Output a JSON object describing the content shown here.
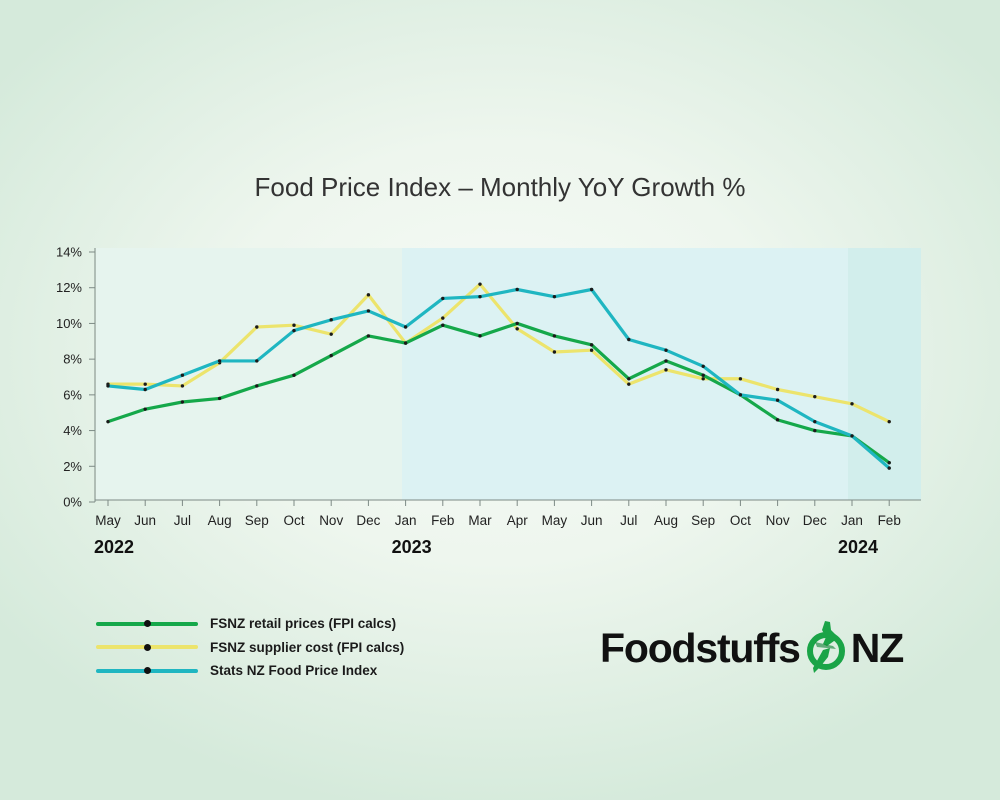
{
  "chart_data": {
    "type": "line",
    "title": "Food Price Index – Monthly YoY Growth %",
    "categories": [
      "May",
      "Jun",
      "Jul",
      "Aug",
      "Sep",
      "Oct",
      "Nov",
      "Dec",
      "Jan",
      "Feb",
      "Mar",
      "Apr",
      "May",
      "Jun",
      "Jul",
      "Aug",
      "Sep",
      "Oct",
      "Nov",
      "Dec",
      "Jan",
      "Feb"
    ],
    "year_labels": [
      {
        "label": "2022",
        "category_index": 0
      },
      {
        "label": "2023",
        "category_index": 8
      },
      {
        "label": "2024",
        "category_index": 20
      }
    ],
    "yticks": [
      "0%",
      "2%",
      "4%",
      "6%",
      "8%",
      "10%",
      "12%",
      "14%"
    ],
    "ylim": [
      0,
      14
    ],
    "xlabel": "",
    "ylabel": "",
    "series": [
      {
        "name": "FSNZ retail prices (FPI calcs)",
        "color": "#15a84a",
        "values": [
          4.5,
          5.2,
          5.6,
          5.8,
          6.5,
          7.1,
          8.2,
          9.3,
          8.9,
          9.9,
          9.3,
          10.0,
          9.3,
          8.8,
          6.9,
          7.9,
          7.1,
          6.0,
          4.6,
          4.0,
          3.7,
          2.2
        ]
      },
      {
        "name": "FSNZ supplier cost (FPI calcs)",
        "color": "#ece46c",
        "values": [
          6.6,
          6.6,
          6.5,
          7.8,
          9.8,
          9.9,
          9.4,
          11.6,
          8.9,
          10.3,
          12.2,
          9.7,
          8.4,
          8.5,
          6.6,
          7.4,
          6.9,
          6.9,
          6.3,
          5.9,
          5.5,
          4.5
        ]
      },
      {
        "name": "Stats NZ Food Price Index",
        "color": "#1fb6c1",
        "values": [
          6.5,
          6.3,
          7.1,
          7.9,
          7.9,
          9.6,
          10.2,
          10.7,
          9.8,
          11.4,
          11.5,
          11.9,
          11.5,
          11.9,
          9.1,
          8.5,
          7.6,
          6.0,
          5.7,
          4.5,
          3.7,
          1.9
        ]
      }
    ]
  },
  "logo": {
    "word": "Foodstuffs",
    "suffix": "NZ"
  },
  "colors": {
    "region_1": "#e7f4ef",
    "region_2": "#dcf2f3",
    "region_3": "#d4efee",
    "text": "#1b1b1b"
  }
}
